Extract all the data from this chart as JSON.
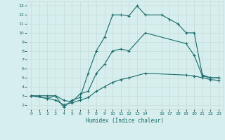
{
  "xlabel": "Humidex (Indice chaleur)",
  "bg_color": "#d6eeed",
  "grid_color": "#c8dedd",
  "line_color": "#1a6b6b",
  "xlim": [
    -0.5,
    23.5
  ],
  "ylim": [
    1.5,
    13.5
  ],
  "xticks": [
    0,
    1,
    2,
    3,
    4,
    5,
    6,
    7,
    8,
    9,
    10,
    11,
    12,
    13,
    14,
    16,
    17,
    18,
    19,
    20,
    21,
    22,
    23
  ],
  "xtick_labels": [
    "0",
    "1",
    "2",
    "3",
    "4",
    "5",
    "6",
    "7",
    "8",
    "9",
    "10",
    "11",
    "12",
    "13",
    "14",
    "16",
    "17",
    "18",
    "19",
    "20",
    "21",
    "22",
    "23"
  ],
  "yticks": [
    2,
    3,
    4,
    5,
    6,
    7,
    8,
    9,
    10,
    11,
    12,
    13
  ],
  "line1_x": [
    0,
    1,
    2,
    3,
    4,
    5,
    6,
    7,
    8,
    9,
    10,
    11,
    12,
    13,
    14,
    16,
    17,
    18,
    19,
    20,
    21,
    22,
    23
  ],
  "line1_y": [
    3.0,
    3.0,
    3.0,
    3.0,
    1.7,
    2.5,
    2.8,
    5.5,
    8.0,
    9.5,
    12.0,
    12.0,
    11.9,
    13.0,
    12.0,
    12.0,
    11.5,
    11.0,
    10.0,
    10.0,
    5.3,
    5.0,
    5.0
  ],
  "line2_x": [
    0,
    2,
    3,
    4,
    5,
    6,
    7,
    8,
    9,
    10,
    11,
    12,
    14,
    19,
    20,
    21,
    22,
    23
  ],
  "line2_y": [
    3.0,
    2.7,
    3.0,
    2.5,
    2.3,
    3.2,
    3.5,
    5.5,
    6.5,
    8.0,
    8.2,
    8.0,
    10.0,
    8.8,
    7.5,
    5.2,
    5.0,
    5.0
  ],
  "line3_x": [
    0,
    2,
    3,
    4,
    5,
    6,
    7,
    8,
    9,
    10,
    11,
    12,
    14,
    19,
    20,
    21,
    22,
    23
  ],
  "line3_y": [
    3.0,
    2.7,
    2.5,
    2.0,
    2.2,
    2.5,
    2.8,
    3.5,
    4.0,
    4.5,
    4.8,
    5.0,
    5.5,
    5.3,
    5.2,
    5.0,
    4.8,
    4.7
  ]
}
